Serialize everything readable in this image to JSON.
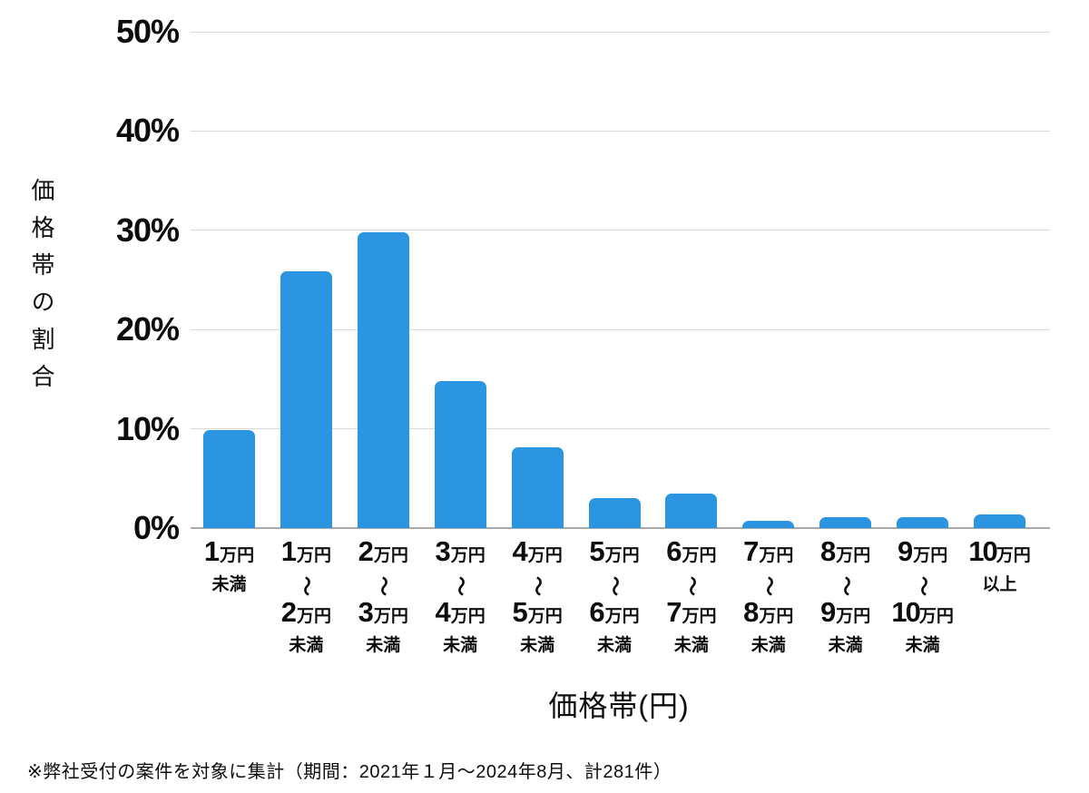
{
  "chart_data": {
    "type": "bar",
    "title": "",
    "xlabel": "価格帯(円)",
    "ylabel": "価格帯の割合",
    "ylim": [
      0,
      50
    ],
    "ytick_labels": [
      "50%",
      "40%",
      "30%",
      "20%",
      "10%",
      "0%"
    ],
    "ytick_values": [
      50,
      40,
      30,
      20,
      10,
      0
    ],
    "grid": true,
    "legend": false,
    "bar_color": "#2B95E2",
    "categories": [
      "1万円未満",
      "1万円〜2万円未満",
      "2万円〜3万円未満",
      "3万円〜4万円未満",
      "4万円〜5万円未満",
      "5万円〜6万円未満",
      "6万円〜7万円未満",
      "7万円〜8万円未満",
      "8万円〜9万円未満",
      "9万円〜10万円未満",
      "10万円以上"
    ],
    "category_lines": [
      [
        "1万円",
        "未満"
      ],
      [
        "1万円",
        "〜",
        "2万円",
        "未満"
      ],
      [
        "2万円",
        "〜",
        "3万円",
        "未満"
      ],
      [
        "3万円",
        "〜",
        "4万円",
        "未満"
      ],
      [
        "4万円",
        "〜",
        "5万円",
        "未満"
      ],
      [
        "5万円",
        "〜",
        "6万円",
        "未満"
      ],
      [
        "6万円",
        "〜",
        "7万円",
        "未満"
      ],
      [
        "7万円",
        "〜",
        "8万円",
        "未満"
      ],
      [
        "8万円",
        "〜",
        "9万円",
        "未満"
      ],
      [
        "9万円",
        "〜",
        "10万円",
        "未満"
      ],
      [
        "10万円",
        "以上"
      ]
    ],
    "values": [
      9.9,
      25.9,
      29.8,
      14.8,
      8.1,
      3.0,
      3.5,
      0.7,
      1.1,
      1.1,
      1.4
    ],
    "footnote": "※弊社受付の案件を対象に集計（期間：2021年１月～2024年8月、計281件）"
  }
}
